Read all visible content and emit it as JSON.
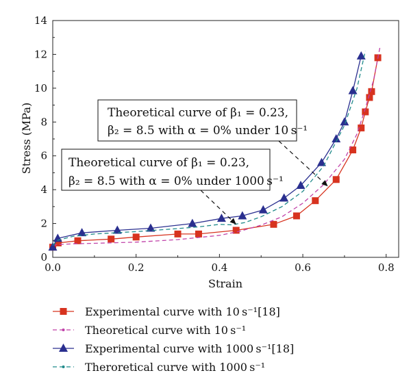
{
  "chart_data": {
    "type": "line",
    "xlabel": "Strain",
    "ylabel": "Stress (MPa)",
    "xlim": [
      0,
      0.83
    ],
    "ylim": [
      0,
      14
    ],
    "xticks": [
      "0.0",
      "0.2",
      "0.4",
      "0.6",
      "0.8"
    ],
    "yticks": [
      "0",
      "2",
      "4",
      "6",
      "8",
      "10",
      "12",
      "14"
    ],
    "grid": false,
    "legend_position": "bottom",
    "series": [
      {
        "name": "Experimental curve with 10 s⁻¹[18]",
        "color": "#d7331f",
        "style": "solid",
        "marker": "square",
        "x": [
          0.0,
          0.013,
          0.06,
          0.14,
          0.2,
          0.3,
          0.35,
          0.44,
          0.53,
          0.585,
          0.63,
          0.68,
          0.72,
          0.74,
          0.75,
          0.76,
          0.765,
          0.78
        ],
        "y": [
          0.6,
          0.85,
          0.98,
          1.08,
          1.2,
          1.38,
          1.38,
          1.6,
          1.95,
          2.45,
          3.35,
          4.6,
          6.35,
          7.65,
          8.6,
          9.45,
          9.8,
          11.8
        ]
      },
      {
        "name": "Theoretical curve with 10 s⁻¹",
        "color": "#c040a8",
        "style": "dashed",
        "marker": "dot",
        "x": [
          0.0,
          0.01,
          0.05,
          0.1,
          0.2,
          0.3,
          0.4,
          0.45,
          0.5,
          0.55,
          0.6,
          0.65,
          0.7,
          0.73,
          0.75,
          0.77,
          0.785
        ],
        "y": [
          0.7,
          0.75,
          0.8,
          0.83,
          0.9,
          1.05,
          1.3,
          1.55,
          1.9,
          2.4,
          3.2,
          4.3,
          5.8,
          7.3,
          8.8,
          10.5,
          12.4
        ]
      },
      {
        "name": "Experimental curve with 1000 s⁻¹[18]",
        "color": "#2a2f8f",
        "style": "solid",
        "marker": "triangle",
        "x": [
          0.0,
          0.012,
          0.07,
          0.155,
          0.235,
          0.335,
          0.405,
          0.455,
          0.505,
          0.555,
          0.595,
          0.645,
          0.68,
          0.7,
          0.72,
          0.74
        ],
        "y": [
          0.6,
          1.12,
          1.45,
          1.6,
          1.72,
          2.0,
          2.3,
          2.45,
          2.8,
          3.5,
          4.25,
          5.6,
          7.0,
          8.0,
          9.85,
          11.9
        ]
      },
      {
        "name": "Theroretical curve with 1000 s⁻¹",
        "color": "#1f8a8a",
        "style": "dashed",
        "marker": "dot",
        "x": [
          0.0,
          0.01,
          0.05,
          0.1,
          0.2,
          0.3,
          0.35,
          0.4,
          0.43,
          0.46,
          0.5,
          0.55,
          0.6,
          0.65,
          0.7,
          0.73,
          0.75
        ],
        "y": [
          0.7,
          1.0,
          1.25,
          1.38,
          1.52,
          1.7,
          1.8,
          1.95,
          1.92,
          2.05,
          2.4,
          3.0,
          3.9,
          5.4,
          7.8,
          10.0,
          12.2
        ]
      }
    ],
    "annotations": [
      {
        "lines": [
          "Theoretical curve of β₁ = 0.23,",
          "β₂ = 8.5 with α = 0% under 10 s⁻¹"
        ],
        "arrow_to": [
          0.66,
          4.2
        ]
      },
      {
        "lines": [
          "Theoretical curve of β₁ = 0.23,",
          "β₂ = 8.5 with α = 0% under 1000 s⁻¹"
        ],
        "arrow_to": [
          0.44,
          1.95
        ]
      }
    ]
  }
}
